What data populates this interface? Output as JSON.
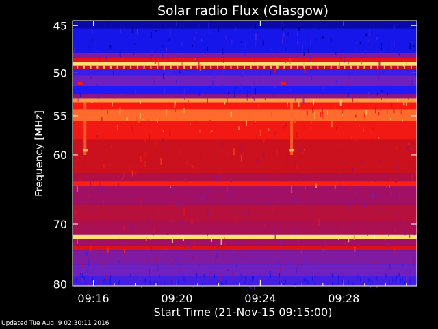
{
  "chart_data": {
    "type": "heatmap",
    "title": "Solar radio Flux (Glasgow)",
    "xlabel": "Start Time (21-Nov-15 09:15:00)",
    "ylabel": "Frequency [MHz]",
    "x_unit": "minutes after 09:15:00",
    "x_range": [
      0,
      16.5
    ],
    "y_range": [
      44.5,
      80.3
    ],
    "y_scale": "log",
    "x_ticks": [
      {
        "value": 1,
        "label": "09:16"
      },
      {
        "value": 5,
        "label": "09:20"
      },
      {
        "value": 9,
        "label": "09:24"
      },
      {
        "value": 13,
        "label": "09:28"
      }
    ],
    "y_ticks": [
      {
        "value": 45,
        "label": "45"
      },
      {
        "value": 50,
        "label": "50"
      },
      {
        "value": 55,
        "label": "55"
      },
      {
        "value": 60,
        "label": "60"
      },
      {
        "value": 70,
        "label": "70"
      },
      {
        "value": 80,
        "label": "80"
      }
    ],
    "colormap": [
      "#000080",
      "#1a1aff",
      "#6a22c8",
      "#9a1070",
      "#c8101e",
      "#ff1a10",
      "#ffa040",
      "#ffff90"
    ],
    "intensity_bands": [
      {
        "from": 44.5,
        "to": 45.3,
        "level": 0.05
      },
      {
        "from": 45.3,
        "to": 47.8,
        "level": 0.12
      },
      {
        "from": 47.8,
        "to": 48.3,
        "level": 0.35
      },
      {
        "from": 48.3,
        "to": 48.8,
        "level": 0.65
      },
      {
        "from": 48.8,
        "to": 49.2,
        "level": 0.95
      },
      {
        "from": 49.2,
        "to": 49.6,
        "level": 0.55
      },
      {
        "from": 49.6,
        "to": 50.3,
        "level": 0.2
      },
      {
        "from": 50.3,
        "to": 51.5,
        "level": 0.3
      },
      {
        "from": 51.5,
        "to": 52.4,
        "level": 0.15
      },
      {
        "from": 52.4,
        "to": 52.9,
        "level": 0.4
      },
      {
        "from": 52.9,
        "to": 53.4,
        "level": 0.85
      },
      {
        "from": 53.4,
        "to": 54.2,
        "level": 0.7
      },
      {
        "from": 54.2,
        "to": 55.6,
        "level": 0.8
      },
      {
        "from": 55.6,
        "to": 58.0,
        "level": 0.68
      },
      {
        "from": 58.0,
        "to": 62.5,
        "level": 0.58
      },
      {
        "from": 62.5,
        "to": 63.6,
        "level": 0.5
      },
      {
        "from": 63.6,
        "to": 64.4,
        "level": 0.72
      },
      {
        "from": 64.4,
        "to": 67.0,
        "level": 0.45
      },
      {
        "from": 67.0,
        "to": 69.5,
        "level": 0.52
      },
      {
        "from": 69.5,
        "to": 71.7,
        "level": 0.48
      },
      {
        "from": 71.7,
        "to": 72.4,
        "level": 0.95
      },
      {
        "from": 72.4,
        "to": 73.5,
        "level": 0.45
      },
      {
        "from": 73.5,
        "to": 74.2,
        "level": 0.62
      },
      {
        "from": 74.2,
        "to": 76.5,
        "level": 0.35
      },
      {
        "from": 76.5,
        "to": 78.5,
        "level": 0.3
      },
      {
        "from": 78.5,
        "to": 80.3,
        "level": 0.22
      }
    ],
    "features": [
      {
        "kind": "vertical-streak",
        "x": 0.6,
        "y_from": 53.4,
        "y_to": 60.0,
        "level": 0.8
      },
      {
        "kind": "vertical-streak",
        "x": 10.5,
        "y_from": 53.4,
        "y_to": 60.0,
        "level": 0.8
      },
      {
        "kind": "spot",
        "x": 0.6,
        "y": 59.4,
        "level": 0.9
      },
      {
        "kind": "spot",
        "x": 10.5,
        "y": 59.4,
        "level": 0.9
      },
      {
        "kind": "spot",
        "x": 0.35,
        "y": 51.2,
        "level": 0.7
      },
      {
        "kind": "spot",
        "x": 10.1,
        "y": 51.2,
        "level": 0.7
      }
    ]
  },
  "footer": {
    "updated_text": "Updated Tue Aug  9 02:30:11 2016"
  }
}
